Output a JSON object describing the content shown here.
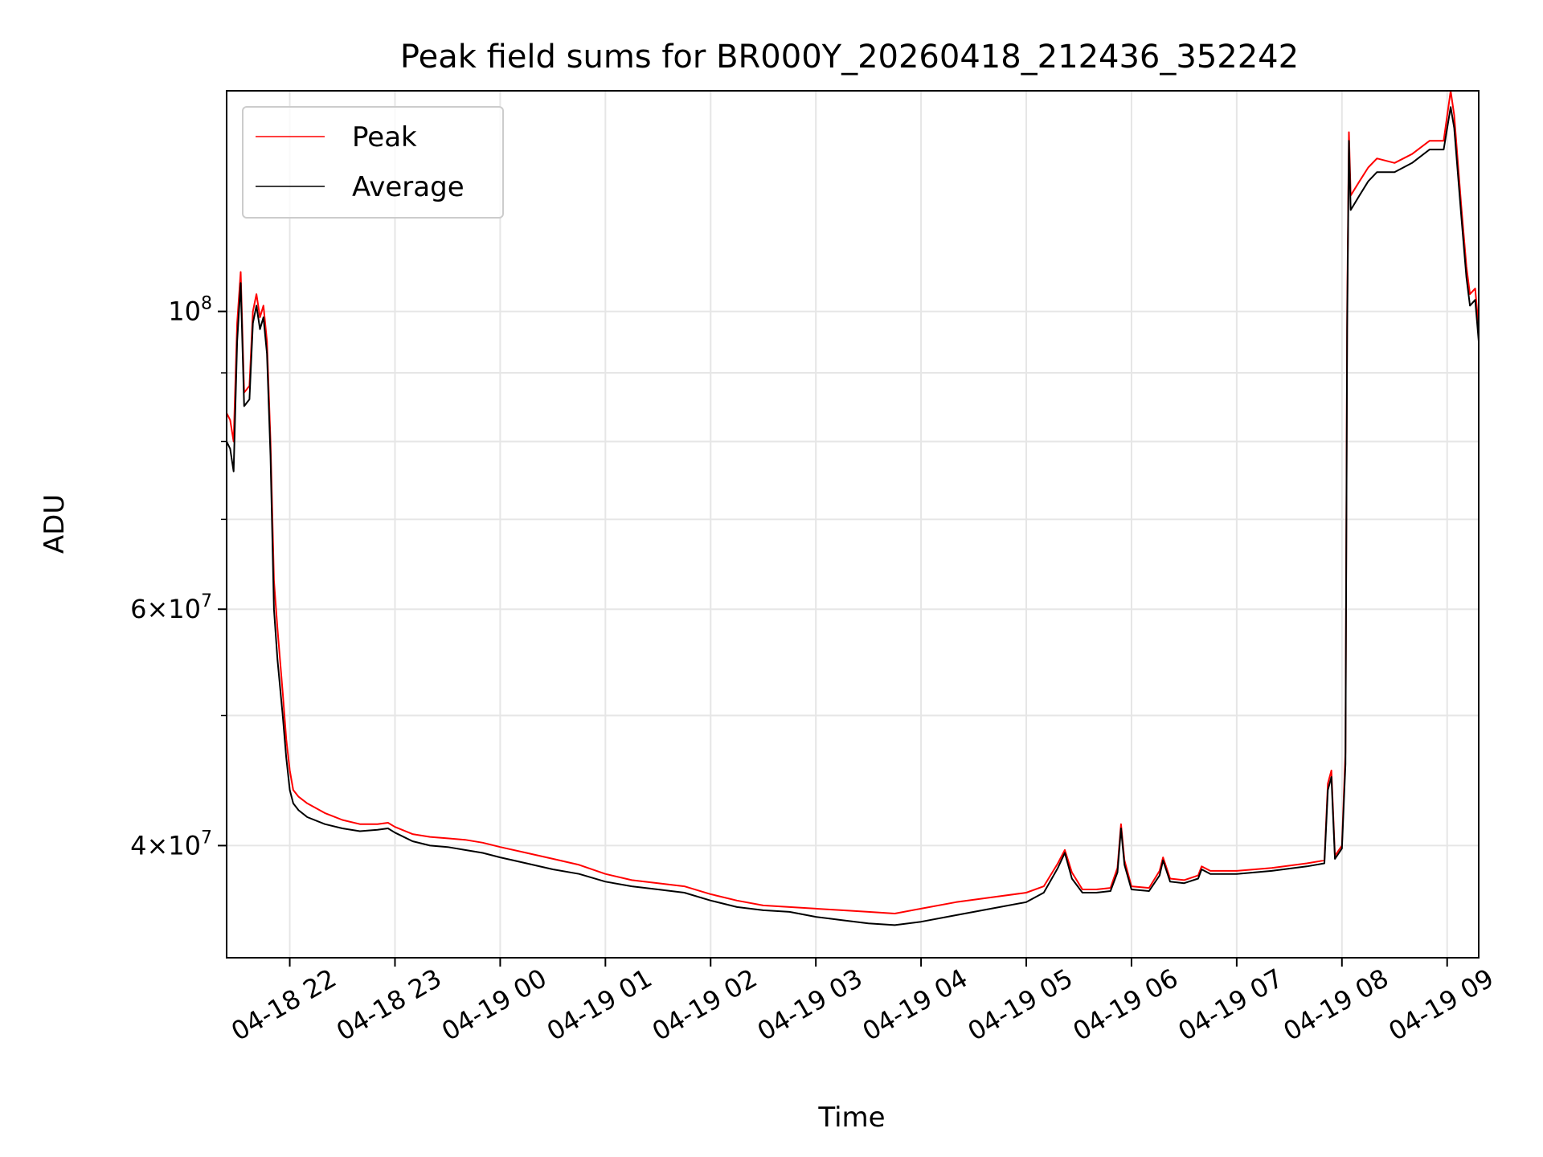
{
  "chart_data": {
    "type": "line",
    "title": "Peak field sums for BR000Y_20260418_212436_352242",
    "xlabel": "Time",
    "ylabel": "ADU",
    "yscale": "log",
    "ylim": [
      33000000,
      146000000
    ],
    "xlim": [
      "2026-04-18 21:24",
      "2026-04-19 09:18"
    ],
    "grid": true,
    "legend_position": "top-left",
    "x_ticks": [
      {
        "t": "2026-04-18 22:00",
        "label": "04-18 22"
      },
      {
        "t": "2026-04-18 23:00",
        "label": "04-18 23"
      },
      {
        "t": "2026-04-19 00:00",
        "label": "04-19 00"
      },
      {
        "t": "2026-04-19 01:00",
        "label": "04-19 01"
      },
      {
        "t": "2026-04-19 02:00",
        "label": "04-19 02"
      },
      {
        "t": "2026-04-19 03:00",
        "label": "04-19 03"
      },
      {
        "t": "2026-04-19 04:00",
        "label": "04-19 04"
      },
      {
        "t": "2026-04-19 05:00",
        "label": "04-19 05"
      },
      {
        "t": "2026-04-19 06:00",
        "label": "04-19 06"
      },
      {
        "t": "2026-04-19 07:00",
        "label": "04-19 07"
      },
      {
        "t": "2026-04-19 08:00",
        "label": "04-19 08"
      },
      {
        "t": "2026-04-19 09:00",
        "label": "04-19 09"
      }
    ],
    "y_major_ticks": [
      {
        "v": 40000000,
        "mantissa": "4",
        "exp": "7"
      },
      {
        "v": 60000000,
        "mantissa": "6",
        "exp": "7"
      },
      {
        "v": 100000000,
        "mantissa": "",
        "exp": "8"
      }
    ],
    "y_minor_ticks": [
      50000000,
      70000000,
      80000000,
      90000000
    ],
    "series": [
      {
        "name": "Peak",
        "color": "#ff0000",
        "points": [
          [
            "2026-04-18 21:24",
            84000000
          ],
          [
            "2026-04-18 21:26",
            83000000
          ],
          [
            "2026-04-18 21:28",
            80000000
          ],
          [
            "2026-04-18 21:30",
            98000000
          ],
          [
            "2026-04-18 21:32",
            107000000
          ],
          [
            "2026-04-18 21:34",
            87000000
          ],
          [
            "2026-04-18 21:37",
            88000000
          ],
          [
            "2026-04-18 21:39",
            100000000
          ],
          [
            "2026-04-18 21:41",
            103000000
          ],
          [
            "2026-04-18 21:43",
            99000000
          ],
          [
            "2026-04-18 21:45",
            101000000
          ],
          [
            "2026-04-18 21:47",
            95000000
          ],
          [
            "2026-04-18 21:49",
            80000000
          ],
          [
            "2026-04-18 21:51",
            63000000
          ],
          [
            "2026-04-18 21:53",
            58000000
          ],
          [
            "2026-04-18 21:56",
            52000000
          ],
          [
            "2026-04-18 21:58",
            48000000
          ],
          [
            "2026-04-18 22:00",
            45500000
          ],
          [
            "2026-04-18 22:02",
            44000000
          ],
          [
            "2026-04-18 22:05",
            43500000
          ],
          [
            "2026-04-18 22:10",
            43000000
          ],
          [
            "2026-04-18 22:20",
            42300000
          ],
          [
            "2026-04-18 22:30",
            41800000
          ],
          [
            "2026-04-18 22:40",
            41500000
          ],
          [
            "2026-04-18 22:50",
            41500000
          ],
          [
            "2026-04-18 22:56",
            41600000
          ],
          [
            "2026-04-18 23:00",
            41300000
          ],
          [
            "2026-04-18 23:10",
            40800000
          ],
          [
            "2026-04-18 23:20",
            40600000
          ],
          [
            "2026-04-18 23:30",
            40500000
          ],
          [
            "2026-04-18 23:40",
            40400000
          ],
          [
            "2026-04-18 23:50",
            40200000
          ],
          [
            "2026-04-19 00:00",
            39900000
          ],
          [
            "2026-04-19 00:15",
            39500000
          ],
          [
            "2026-04-19 00:30",
            39100000
          ],
          [
            "2026-04-19 00:45",
            38700000
          ],
          [
            "2026-04-19 01:00",
            38100000
          ],
          [
            "2026-04-19 01:15",
            37700000
          ],
          [
            "2026-04-19 01:30",
            37500000
          ],
          [
            "2026-04-19 01:45",
            37300000
          ],
          [
            "2026-04-19 02:00",
            36800000
          ],
          [
            "2026-04-19 02:15",
            36400000
          ],
          [
            "2026-04-19 02:30",
            36100000
          ],
          [
            "2026-04-19 02:45",
            36000000
          ],
          [
            "2026-04-19 03:00",
            35900000
          ],
          [
            "2026-04-19 03:15",
            35800000
          ],
          [
            "2026-04-19 03:30",
            35700000
          ],
          [
            "2026-04-19 03:45",
            35600000
          ],
          [
            "2026-04-19 04:00",
            35900000
          ],
          [
            "2026-04-19 04:20",
            36300000
          ],
          [
            "2026-04-19 04:40",
            36600000
          ],
          [
            "2026-04-19 05:00",
            36900000
          ],
          [
            "2026-04-19 05:10",
            37300000
          ],
          [
            "2026-04-19 05:18",
            38800000
          ],
          [
            "2026-04-19 05:22",
            39700000
          ],
          [
            "2026-04-19 05:26",
            38200000
          ],
          [
            "2026-04-19 05:32",
            37100000
          ],
          [
            "2026-04-19 05:40",
            37100000
          ],
          [
            "2026-04-19 05:48",
            37200000
          ],
          [
            "2026-04-19 05:52",
            38500000
          ],
          [
            "2026-04-19 05:54",
            41500000
          ],
          [
            "2026-04-19 05:56",
            39000000
          ],
          [
            "2026-04-19 06:00",
            37300000
          ],
          [
            "2026-04-19 06:10",
            37200000
          ],
          [
            "2026-04-19 06:16",
            38300000
          ],
          [
            "2026-04-19 06:18",
            39200000
          ],
          [
            "2026-04-19 06:22",
            37800000
          ],
          [
            "2026-04-19 06:30",
            37700000
          ],
          [
            "2026-04-19 06:38",
            38000000
          ],
          [
            "2026-04-19 06:40",
            38600000
          ],
          [
            "2026-04-19 06:45",
            38300000
          ],
          [
            "2026-04-19 07:00",
            38300000
          ],
          [
            "2026-04-19 07:20",
            38500000
          ],
          [
            "2026-04-19 07:40",
            38800000
          ],
          [
            "2026-04-19 07:50",
            39000000
          ],
          [
            "2026-04-19 07:52",
            44500000
          ],
          [
            "2026-04-19 07:54",
            45500000
          ],
          [
            "2026-04-19 07:56",
            39300000
          ],
          [
            "2026-04-19 08:00",
            40000000
          ],
          [
            "2026-04-19 08:02",
            47000000
          ],
          [
            "2026-04-19 08:03",
            100000000
          ],
          [
            "2026-04-19 08:04",
            136000000
          ],
          [
            "2026-04-19 08:05",
            122000000
          ],
          [
            "2026-04-19 08:10",
            125000000
          ],
          [
            "2026-04-19 08:15",
            128000000
          ],
          [
            "2026-04-19 08:20",
            130000000
          ],
          [
            "2026-04-19 08:30",
            129000000
          ],
          [
            "2026-04-19 08:40",
            131000000
          ],
          [
            "2026-04-19 08:50",
            134000000
          ],
          [
            "2026-04-19 08:58",
            134000000
          ],
          [
            "2026-04-19 09:02",
            146000000
          ],
          [
            "2026-04-19 09:04",
            140000000
          ],
          [
            "2026-04-19 09:08",
            120000000
          ],
          [
            "2026-04-19 09:11",
            108000000
          ],
          [
            "2026-04-19 09:13",
            103000000
          ],
          [
            "2026-04-19 09:16",
            104000000
          ],
          [
            "2026-04-19 09:18",
            97000000
          ]
        ]
      },
      {
        "name": "Average",
        "color": "#000000",
        "points": [
          [
            "2026-04-18 21:24",
            80000000
          ],
          [
            "2026-04-18 21:26",
            79000000
          ],
          [
            "2026-04-18 21:28",
            76000000
          ],
          [
            "2026-04-18 21:30",
            95000000
          ],
          [
            "2026-04-18 21:32",
            105000000
          ],
          [
            "2026-04-18 21:34",
            85000000
          ],
          [
            "2026-04-18 21:37",
            86000000
          ],
          [
            "2026-04-18 21:39",
            98000000
          ],
          [
            "2026-04-18 21:41",
            101000000
          ],
          [
            "2026-04-18 21:43",
            97000000
          ],
          [
            "2026-04-18 21:45",
            99000000
          ],
          [
            "2026-04-18 21:47",
            93000000
          ],
          [
            "2026-04-18 21:49",
            78000000
          ],
          [
            "2026-04-18 21:51",
            60000000
          ],
          [
            "2026-04-18 21:53",
            55000000
          ],
          [
            "2026-04-18 21:56",
            50000000
          ],
          [
            "2026-04-18 21:58",
            46500000
          ],
          [
            "2026-04-18 22:00",
            44000000
          ],
          [
            "2026-04-18 22:02",
            43000000
          ],
          [
            "2026-04-18 22:05",
            42500000
          ],
          [
            "2026-04-18 22:10",
            42000000
          ],
          [
            "2026-04-18 22:20",
            41500000
          ],
          [
            "2026-04-18 22:30",
            41200000
          ],
          [
            "2026-04-18 22:40",
            41000000
          ],
          [
            "2026-04-18 22:50",
            41100000
          ],
          [
            "2026-04-18 22:56",
            41200000
          ],
          [
            "2026-04-18 23:00",
            40900000
          ],
          [
            "2026-04-18 23:10",
            40300000
          ],
          [
            "2026-04-18 23:20",
            40000000
          ],
          [
            "2026-04-18 23:30",
            39900000
          ],
          [
            "2026-04-18 23:40",
            39700000
          ],
          [
            "2026-04-18 23:50",
            39500000
          ],
          [
            "2026-04-19 00:00",
            39200000
          ],
          [
            "2026-04-19 00:15",
            38800000
          ],
          [
            "2026-04-19 00:30",
            38400000
          ],
          [
            "2026-04-19 00:45",
            38100000
          ],
          [
            "2026-04-19 01:00",
            37600000
          ],
          [
            "2026-04-19 01:15",
            37300000
          ],
          [
            "2026-04-19 01:30",
            37100000
          ],
          [
            "2026-04-19 01:45",
            36900000
          ],
          [
            "2026-04-19 02:00",
            36400000
          ],
          [
            "2026-04-19 02:15",
            36000000
          ],
          [
            "2026-04-19 02:30",
            35800000
          ],
          [
            "2026-04-19 02:45",
            35700000
          ],
          [
            "2026-04-19 03:00",
            35400000
          ],
          [
            "2026-04-19 03:15",
            35200000
          ],
          [
            "2026-04-19 03:30",
            35000000
          ],
          [
            "2026-04-19 03:45",
            34900000
          ],
          [
            "2026-04-19 04:00",
            35100000
          ],
          [
            "2026-04-19 04:20",
            35500000
          ],
          [
            "2026-04-19 04:40",
            35900000
          ],
          [
            "2026-04-19 05:00",
            36300000
          ],
          [
            "2026-04-19 05:10",
            36900000
          ],
          [
            "2026-04-19 05:18",
            38500000
          ],
          [
            "2026-04-19 05:22",
            39500000
          ],
          [
            "2026-04-19 05:26",
            37800000
          ],
          [
            "2026-04-19 05:32",
            36900000
          ],
          [
            "2026-04-19 05:40",
            36900000
          ],
          [
            "2026-04-19 05:48",
            37000000
          ],
          [
            "2026-04-19 05:52",
            38200000
          ],
          [
            "2026-04-19 05:54",
            41200000
          ],
          [
            "2026-04-19 05:56",
            38700000
          ],
          [
            "2026-04-19 06:00",
            37100000
          ],
          [
            "2026-04-19 06:10",
            37000000
          ],
          [
            "2026-04-19 06:16",
            38000000
          ],
          [
            "2026-04-19 06:18",
            39000000
          ],
          [
            "2026-04-19 06:22",
            37600000
          ],
          [
            "2026-04-19 06:30",
            37500000
          ],
          [
            "2026-04-19 06:38",
            37800000
          ],
          [
            "2026-04-19 06:40",
            38400000
          ],
          [
            "2026-04-19 06:45",
            38100000
          ],
          [
            "2026-04-19 07:00",
            38100000
          ],
          [
            "2026-04-19 07:20",
            38300000
          ],
          [
            "2026-04-19 07:40",
            38600000
          ],
          [
            "2026-04-19 07:50",
            38800000
          ],
          [
            "2026-04-19 07:52",
            44000000
          ],
          [
            "2026-04-19 07:54",
            45000000
          ],
          [
            "2026-04-19 07:56",
            39100000
          ],
          [
            "2026-04-19 08:00",
            39800000
          ],
          [
            "2026-04-19 08:02",
            46000000
          ],
          [
            "2026-04-19 08:03",
            97000000
          ],
          [
            "2026-04-19 08:04",
            134000000
          ],
          [
            "2026-04-19 08:05",
            119000000
          ],
          [
            "2026-04-19 08:10",
            122000000
          ],
          [
            "2026-04-19 08:15",
            125000000
          ],
          [
            "2026-04-19 08:20",
            127000000
          ],
          [
            "2026-04-19 08:30",
            127000000
          ],
          [
            "2026-04-19 08:40",
            129000000
          ],
          [
            "2026-04-19 08:50",
            132000000
          ],
          [
            "2026-04-19 08:58",
            132000000
          ],
          [
            "2026-04-19 09:02",
            142000000
          ],
          [
            "2026-04-19 09:04",
            137000000
          ],
          [
            "2026-04-19 09:08",
            118000000
          ],
          [
            "2026-04-19 09:11",
            106000000
          ],
          [
            "2026-04-19 09:13",
            101000000
          ],
          [
            "2026-04-19 09:16",
            102000000
          ],
          [
            "2026-04-19 09:18",
            95000000
          ]
        ]
      }
    ]
  }
}
